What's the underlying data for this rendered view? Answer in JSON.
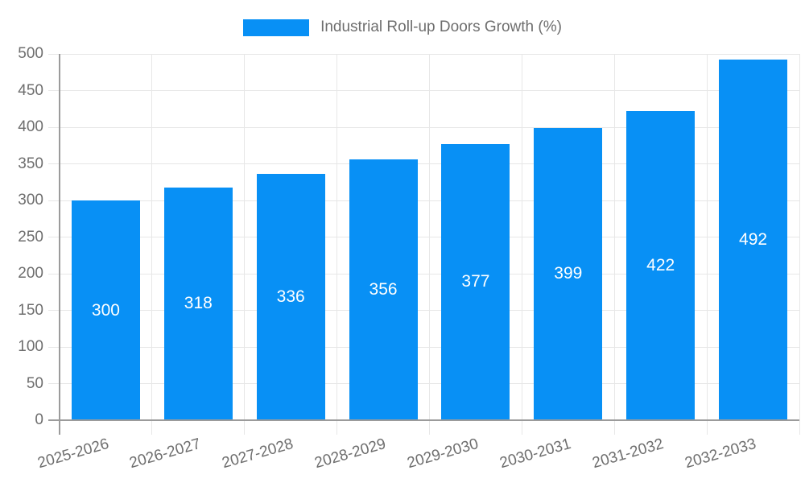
{
  "chart_data": {
    "type": "bar",
    "title": "",
    "legend_label": "Industrial Roll-up Doors Growth (%)",
    "legend_position": "top-center",
    "categories": [
      "2025-2026",
      "2026-2027",
      "2027-2028",
      "2028-2029",
      "2029-2030",
      "2030-2031",
      "2031-2032",
      "2032-2033"
    ],
    "values": [
      300,
      318,
      336,
      356,
      377,
      399,
      422,
      492
    ],
    "value_labels_visible": true,
    "xlabel": "",
    "ylabel": "",
    "ylim": [
      0,
      500
    ],
    "ytick_step": 50,
    "ytick_labels": [
      "0",
      "50",
      "100",
      "150",
      "200",
      "250",
      "300",
      "350",
      "400",
      "450",
      "500"
    ],
    "grid": true,
    "x_label_rotation_deg": -16,
    "colors": {
      "bar": "#0890f5",
      "bar_value_label": "#ffffff",
      "axis_text": "#6e6e6e",
      "gridline": "#e7e7e7",
      "axis_line": "#9b9b9b",
      "background": "#ffffff"
    }
  }
}
